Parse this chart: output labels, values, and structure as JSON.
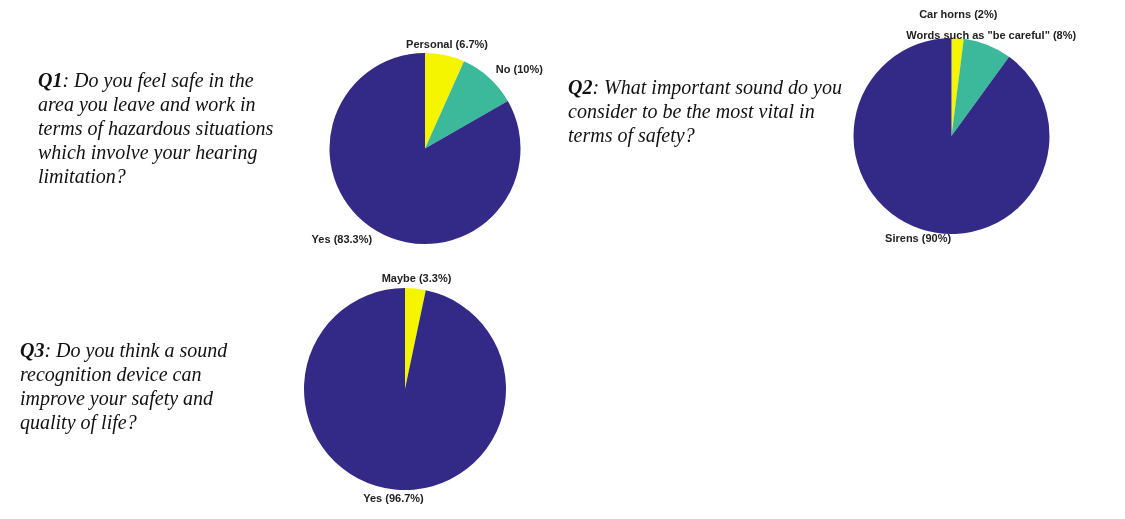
{
  "chart_data": [
    {
      "type": "pie",
      "title": "Q1: Do you feel safe in the area you leave and work in terms of hazardous situations which involve your hearing limitation?",
      "categories": [
        "Personal (6.7%)",
        "No (10%)",
        "Yes (83.3%)"
      ],
      "values": [
        6.7,
        10,
        83.3
      ],
      "colors": [
        "#f5f500",
        "#3bb99a",
        "#322a86"
      ],
      "legend": false
    },
    {
      "type": "pie",
      "title": "Q2: What important sound do you consider to be the most vital in terms of safety?",
      "categories": [
        "Car horns (2%)",
        "Words such as \"be careful\" (8%)",
        "Sirens (90%)"
      ],
      "values": [
        2,
        8,
        90
      ],
      "colors": [
        "#f5f500",
        "#3bb99a",
        "#322a86"
      ],
      "legend": false
    },
    {
      "type": "pie",
      "title": "Q3: Do you think a sound recognition device can improve your safety and quality of life?",
      "categories": [
        "Maybe (3.3%)",
        "Yes (96.7%)"
      ],
      "values": [
        3.3,
        96.7
      ],
      "colors": [
        "#f5f500",
        "#322a86"
      ],
      "legend": false
    }
  ]
}
